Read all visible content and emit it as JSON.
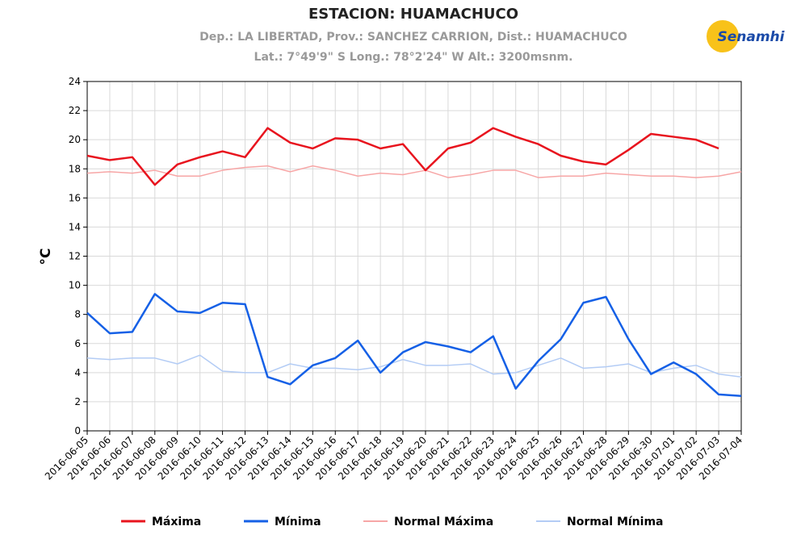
{
  "chart_data": {
    "type": "line",
    "title": "ESTACION: HUAMACHUCO",
    "subtitle": [
      "Dep.: LA LIBERTAD, Prov.: SANCHEZ CARRION, Dist.: HUAMACHUCO",
      "Lat.: 7°49'9\" S Long.: 78°2'24\" W Alt.: 3200msnm."
    ],
    "logo": "Senamhi",
    "y_label": "°C",
    "x": [
      "2016-06-05",
      "2016-06-06",
      "2016-06-07",
      "2016-06-08",
      "2016-06-09",
      "2016-06-10",
      "2016-06-11",
      "2016-06-12",
      "2016-06-13",
      "2016-06-14",
      "2016-06-15",
      "2016-06-16",
      "2016-06-17",
      "2016-06-18",
      "2016-06-19",
      "2016-06-20",
      "2016-06-21",
      "2016-06-22",
      "2016-06-23",
      "2016-06-24",
      "2016-06-25",
      "2016-06-26",
      "2016-06-27",
      "2016-06-28",
      "2016-06-29",
      "2016-06-30",
      "2016-07-01",
      "2016-07-02",
      "2016-07-03",
      "2016-07-04"
    ],
    "series": [
      {
        "name": "Máxima",
        "color": "#e8141e",
        "width": 2.5,
        "values": [
          18.9,
          18.6,
          18.8,
          16.9,
          18.3,
          18.8,
          19.2,
          18.8,
          20.8,
          19.8,
          19.4,
          20.1,
          20.0,
          19.4,
          19.7,
          17.9,
          19.4,
          19.8,
          20.8,
          20.2,
          19.7,
          18.9,
          18.5,
          18.3,
          19.3,
          20.4,
          20.2,
          20.0,
          19.4,
          null
        ]
      },
      {
        "name": "Mínima",
        "color": "#1560e6",
        "width": 2.5,
        "values": [
          8.1,
          6.7,
          6.8,
          9.4,
          8.2,
          8.1,
          8.8,
          8.7,
          3.7,
          3.2,
          4.5,
          5.0,
          6.2,
          4.0,
          5.4,
          6.1,
          5.8,
          5.4,
          6.5,
          2.9,
          4.8,
          6.3,
          8.8,
          9.2,
          6.3,
          3.9,
          4.7,
          3.9,
          2.5,
          2.4
        ]
      },
      {
        "name": "Normal Máxima",
        "color": "#f7a6a6",
        "width": 1.5,
        "values": [
          17.7,
          17.8,
          17.7,
          17.9,
          17.5,
          17.5,
          17.9,
          18.1,
          18.2,
          17.8,
          18.2,
          17.9,
          17.5,
          17.7,
          17.6,
          17.9,
          17.4,
          17.6,
          17.9,
          17.9,
          17.4,
          17.5,
          17.5,
          17.7,
          17.6,
          17.5,
          17.5,
          17.4,
          17.5,
          17.8
        ]
      },
      {
        "name": "Normal Mínima",
        "color": "#b3ccf5",
        "width": 1.5,
        "values": [
          5.0,
          4.9,
          5.0,
          5.0,
          4.6,
          5.2,
          4.1,
          4.0,
          4.0,
          4.6,
          4.3,
          4.3,
          4.2,
          4.4,
          4.9,
          4.5,
          4.5,
          4.6,
          3.9,
          4.0,
          4.5,
          5.0,
          4.3,
          4.4,
          4.6,
          4.0,
          4.3,
          4.5,
          3.9,
          3.7
        ]
      }
    ],
    "ylim": [
      0,
      24
    ],
    "yticks": [
      0,
      2,
      4,
      6,
      8,
      10,
      12,
      14,
      16,
      18,
      20,
      22,
      24
    ],
    "grid": true,
    "legend": "bottom"
  }
}
